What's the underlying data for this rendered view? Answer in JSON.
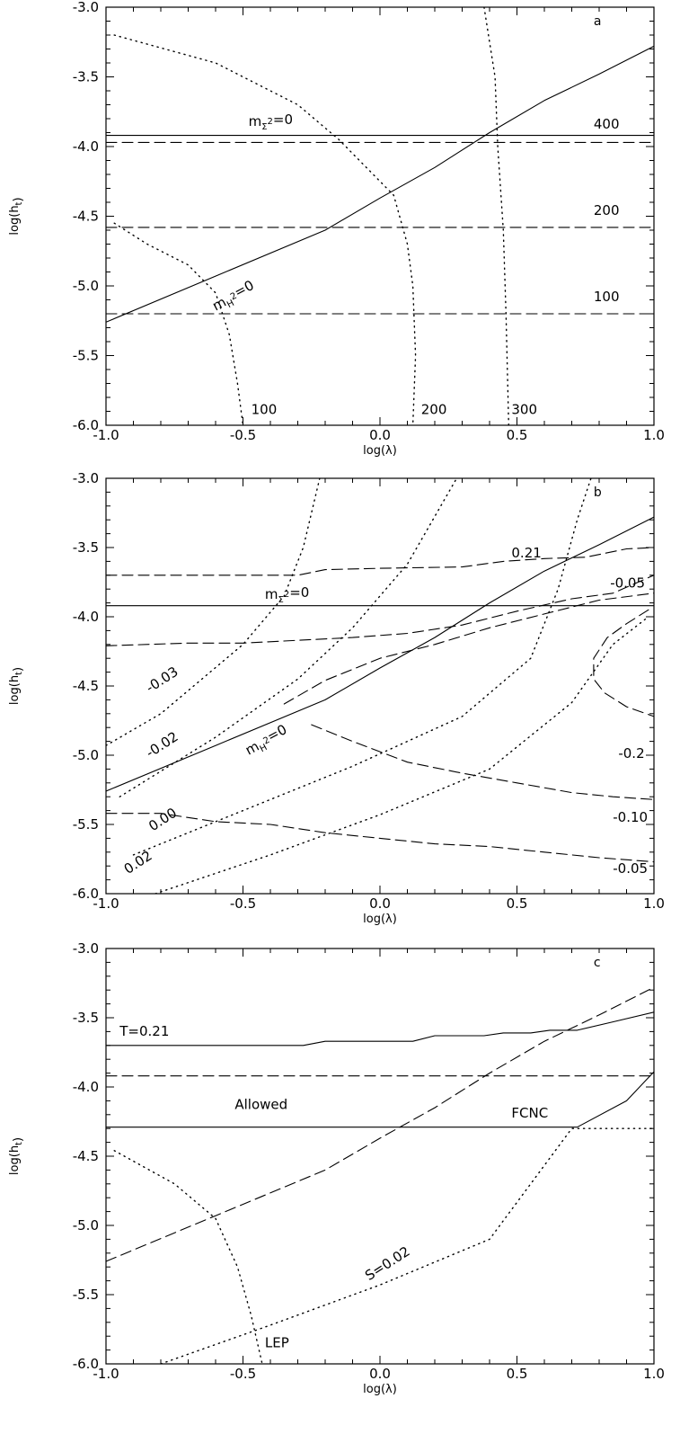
{
  "chart_data": [
    {
      "type": "line",
      "panel_label": "a",
      "xlabel": "log(λ)",
      "ylabel": "log(h_t)",
      "xlim": [
        -1.0,
        1.0
      ],
      "ylim": [
        -6.0,
        -3.0
      ],
      "x_ticks": [
        "-1.0",
        "-0.5",
        "0.0",
        "0.5",
        "1.0"
      ],
      "y_ticks": [
        "-3.0",
        "-3.5",
        "-4.0",
        "-4.5",
        "-5.0",
        "-5.5",
        "-6.0"
      ],
      "grid": false,
      "series": [
        {
          "style": "solid",
          "points": [
            [
              -1.0,
              -5.26
            ],
            [
              -0.6,
              -4.93
            ],
            [
              -0.2,
              -4.6
            ],
            [
              0.0,
              -4.37
            ],
            [
              0.2,
              -4.15
            ],
            [
              0.4,
              -3.9
            ],
            [
              0.6,
              -3.67
            ],
            [
              0.8,
              -3.48
            ],
            [
              1.0,
              -3.28
            ]
          ]
        },
        {
          "style": "solid",
          "points": [
            [
              -1.0,
              -3.92
            ],
            [
              1.0,
              -3.92
            ]
          ]
        },
        {
          "style": "dashed",
          "points": [
            [
              -1.0,
              -3.97
            ],
            [
              1.0,
              -3.97
            ]
          ]
        },
        {
          "style": "dashed",
          "points": [
            [
              -1.0,
              -4.58
            ],
            [
              1.0,
              -4.58
            ]
          ]
        },
        {
          "style": "dashed",
          "points": [
            [
              -1.0,
              -5.2
            ],
            [
              1.0,
              -5.2
            ]
          ]
        },
        {
          "style": "dotted",
          "points": [
            [
              -0.97,
              -3.2
            ],
            [
              -0.6,
              -3.4
            ],
            [
              -0.3,
              -3.7
            ],
            [
              -0.15,
              -3.95
            ],
            [
              0.05,
              -4.35
            ],
            [
              0.1,
              -4.7
            ],
            [
              0.12,
              -5.0
            ],
            [
              0.13,
              -5.5
            ],
            [
              0.12,
              -6.0
            ]
          ]
        },
        {
          "style": "dotted",
          "points": [
            [
              0.38,
              -3.0
            ],
            [
              0.42,
              -3.5
            ],
            [
              0.43,
              -4.0
            ],
            [
              0.45,
              -4.6
            ],
            [
              0.46,
              -5.2
            ],
            [
              0.47,
              -6.0
            ]
          ]
        },
        {
          "style": "dotted",
          "points": [
            [
              -0.97,
              -4.55
            ],
            [
              -0.85,
              -4.7
            ],
            [
              -0.7,
              -4.85
            ],
            [
              -0.6,
              -5.05
            ],
            [
              -0.55,
              -5.35
            ],
            [
              -0.52,
              -5.7
            ],
            [
              -0.5,
              -6.0
            ]
          ]
        }
      ],
      "annotations": [
        {
          "text": "a",
          "x": 0.78,
          "y": -3.13,
          "kind": "panel"
        },
        {
          "text": "m_Σ²=0",
          "x": -0.48,
          "y": -3.85
        },
        {
          "text": "m_H²=0",
          "x": -0.6,
          "y": -5.18,
          "rotate": -28
        },
        {
          "text": "400",
          "x": 0.78,
          "y": -3.87
        },
        {
          "text": "200",
          "x": 0.78,
          "y": -4.49
        },
        {
          "text": "100",
          "x": 0.78,
          "y": -5.11
        },
        {
          "text": "100",
          "x": -0.47,
          "y": -5.92
        },
        {
          "text": "200",
          "x": 0.15,
          "y": -5.92
        },
        {
          "text": "300",
          "x": 0.48,
          "y": -5.92
        }
      ]
    },
    {
      "type": "line",
      "panel_label": "b",
      "xlabel": "log(λ)",
      "ylabel": "log(h_t)",
      "xlim": [
        -1.0,
        1.0
      ],
      "ylim": [
        -6.0,
        -3.0
      ],
      "x_ticks": [
        "-1.0",
        "-0.5",
        "0.0",
        "0.5",
        "1.0"
      ],
      "y_ticks": [
        "-3.0",
        "-3.5",
        "-4.0",
        "-4.5",
        "-5.0",
        "-5.5",
        "-6.0"
      ],
      "grid": false,
      "series": [
        {
          "style": "solid",
          "points": [
            [
              -1.0,
              -5.26
            ],
            [
              -0.6,
              -4.93
            ],
            [
              -0.2,
              -4.6
            ],
            [
              0.0,
              -4.37
            ],
            [
              0.2,
              -4.15
            ],
            [
              0.4,
              -3.9
            ],
            [
              0.6,
              -3.67
            ],
            [
              0.8,
              -3.48
            ],
            [
              1.0,
              -3.28
            ]
          ]
        },
        {
          "style": "solid",
          "points": [
            [
              -1.0,
              -3.92
            ],
            [
              1.0,
              -3.92
            ]
          ]
        },
        {
          "style": "dashed",
          "points": [
            [
              -1.0,
              -3.7
            ],
            [
              -0.3,
              -3.7
            ],
            [
              -0.2,
              -3.66
            ],
            [
              0.0,
              -3.65
            ],
            [
              0.3,
              -3.64
            ],
            [
              0.45,
              -3.6
            ],
            [
              0.6,
              -3.58
            ],
            [
              0.75,
              -3.57
            ],
            [
              0.9,
              -3.51
            ],
            [
              1.0,
              -3.5
            ]
          ]
        },
        {
          "style": "dashed",
          "points": [
            [
              -1.0,
              -4.21
            ],
            [
              -0.7,
              -4.19
            ],
            [
              -0.5,
              -4.19
            ],
            [
              -0.3,
              -4.17
            ],
            [
              -0.1,
              -4.15
            ],
            [
              0.1,
              -4.12
            ],
            [
              0.3,
              -4.06
            ],
            [
              0.5,
              -3.96
            ],
            [
              0.7,
              -3.87
            ],
            [
              0.85,
              -3.83
            ],
            [
              1.0,
              -3.7
            ]
          ]
        },
        {
          "style": "dashed",
          "points": [
            [
              -0.35,
              -4.63
            ],
            [
              -0.2,
              -4.46
            ],
            [
              0.0,
              -4.3
            ],
            [
              0.2,
              -4.2
            ],
            [
              0.4,
              -4.08
            ],
            [
              0.6,
              -3.98
            ],
            [
              0.8,
              -3.88
            ],
            [
              1.0,
              -3.83
            ]
          ]
        },
        {
          "style": "dashed",
          "points": [
            [
              -0.25,
              -4.78
            ],
            [
              -0.1,
              -4.9
            ],
            [
              0.1,
              -5.05
            ],
            [
              0.3,
              -5.13
            ],
            [
              0.5,
              -5.2
            ],
            [
              0.7,
              -5.27
            ],
            [
              0.85,
              -5.3
            ],
            [
              1.0,
              -5.32
            ]
          ]
        },
        {
          "style": "dashed",
          "points": [
            [
              -1.0,
              -5.42
            ],
            [
              -0.8,
              -5.42
            ],
            [
              -0.6,
              -5.48
            ],
            [
              -0.4,
              -5.5
            ],
            [
              -0.2,
              -5.56
            ],
            [
              0.0,
              -5.6
            ],
            [
              0.2,
              -5.64
            ],
            [
              0.4,
              -5.66
            ],
            [
              0.6,
              -5.7
            ],
            [
              0.8,
              -5.74
            ],
            [
              1.0,
              -5.77
            ]
          ]
        },
        {
          "style": "dashed",
          "points": [
            [
              0.98,
              -3.95
            ],
            [
              0.9,
              -4.05
            ],
            [
              0.83,
              -4.15
            ],
            [
              0.78,
              -4.3
            ],
            [
              0.78,
              -4.45
            ],
            [
              0.82,
              -4.55
            ],
            [
              0.9,
              -4.65
            ],
            [
              1.0,
              -4.72
            ]
          ]
        },
        {
          "style": "dotted",
          "points": [
            [
              -1.0,
              -4.93
            ],
            [
              -0.8,
              -4.7
            ],
            [
              -0.5,
              -4.2
            ],
            [
              -0.35,
              -3.85
            ],
            [
              -0.28,
              -3.5
            ],
            [
              -0.22,
              -3.0
            ]
          ]
        },
        {
          "style": "dotted",
          "points": [
            [
              -0.95,
              -5.3
            ],
            [
              -0.6,
              -4.87
            ],
            [
              -0.3,
              -4.45
            ],
            [
              -0.1,
              -4.08
            ],
            [
              0.1,
              -3.62
            ],
            [
              0.28,
              -3.0
            ]
          ]
        },
        {
          "style": "dotted",
          "points": [
            [
              -0.9,
              -5.72
            ],
            [
              -0.5,
              -5.4
            ],
            [
              -0.1,
              -5.08
            ],
            [
              0.3,
              -4.72
            ],
            [
              0.55,
              -4.3
            ],
            [
              0.65,
              -3.8
            ],
            [
              0.72,
              -3.3
            ],
            [
              0.77,
              -3.0
            ]
          ]
        },
        {
          "style": "dotted",
          "points": [
            [
              -0.82,
              -6.0
            ],
            [
              -0.4,
              -5.72
            ],
            [
              0.0,
              -5.43
            ],
            [
              0.4,
              -5.1
            ],
            [
              0.7,
              -4.62
            ],
            [
              0.85,
              -4.2
            ],
            [
              0.98,
              -4.0
            ]
          ]
        }
      ],
      "annotations": [
        {
          "text": "b",
          "x": 0.78,
          "y": -3.13,
          "kind": "panel"
        },
        {
          "text": "0.21",
          "x": 0.48,
          "y": -3.57
        },
        {
          "text": "-0.05",
          "x": 0.84,
          "y": -3.79
        },
        {
          "text": "m_Σ²=0",
          "x": -0.42,
          "y": -3.87
        },
        {
          "text": "-0.03",
          "x": -0.84,
          "y": -4.55,
          "rotate": -33
        },
        {
          "text": "-0.02",
          "x": -0.84,
          "y": -5.02,
          "rotate": -33
        },
        {
          "text": "m_H²=0",
          "x": -0.48,
          "y": -5.0,
          "rotate": -28
        },
        {
          "text": "-0.2",
          "x": 0.87,
          "y": -5.02
        },
        {
          "text": "0.00",
          "x": -0.83,
          "y": -5.55,
          "rotate": -33
        },
        {
          "text": "0.02",
          "x": -0.92,
          "y": -5.86,
          "rotate": -33
        },
        {
          "text": "-0.10",
          "x": 0.85,
          "y": -5.48
        },
        {
          "text": "-0.05",
          "x": 0.85,
          "y": -5.85
        }
      ]
    },
    {
      "type": "line",
      "panel_label": "c",
      "xlabel": "log(λ)",
      "ylabel": "log(h_t)",
      "xlim": [
        -1.0,
        1.0
      ],
      "ylim": [
        -6.0,
        -3.0
      ],
      "x_ticks": [
        "-1.0",
        "-0.5",
        "0.0",
        "0.5",
        "1.0"
      ],
      "y_ticks": [
        "-3.0",
        "-3.5",
        "-4.0",
        "-4.5",
        "-5.0",
        "-5.5",
        "-6.0"
      ],
      "grid": false,
      "series": [
        {
          "style": "solid",
          "points": [
            [
              -1.0,
              -3.7
            ],
            [
              -0.28,
              -3.7
            ],
            [
              -0.2,
              -3.67
            ],
            [
              0.12,
              -3.67
            ],
            [
              0.2,
              -3.63
            ],
            [
              0.38,
              -3.63
            ],
            [
              0.45,
              -3.61
            ],
            [
              0.55,
              -3.61
            ],
            [
              0.62,
              -3.59
            ],
            [
              0.72,
              -3.59
            ],
            [
              0.85,
              -3.53
            ],
            [
              1.0,
              -3.46
            ]
          ]
        },
        {
          "style": "solid",
          "points": [
            [
              -1.0,
              -4.29
            ],
            [
              0.72,
              -4.29
            ],
            [
              0.9,
              -4.1
            ],
            [
              1.0,
              -3.89
            ]
          ]
        },
        {
          "style": "dashed",
          "points": [
            [
              -1.0,
              -5.26
            ],
            [
              -0.6,
              -4.93
            ],
            [
              -0.2,
              -4.6
            ],
            [
              0.0,
              -4.37
            ],
            [
              0.2,
              -4.15
            ],
            [
              0.4,
              -3.9
            ],
            [
              0.6,
              -3.67
            ],
            [
              0.8,
              -3.48
            ],
            [
              1.0,
              -3.28
            ]
          ]
        },
        {
          "style": "dashed",
          "points": [
            [
              -1.0,
              -3.92
            ],
            [
              1.0,
              -3.92
            ]
          ]
        },
        {
          "style": "dotted",
          "points": [
            [
              -0.8,
              -6.0
            ],
            [
              -0.4,
              -5.72
            ],
            [
              0.0,
              -5.43
            ],
            [
              0.4,
              -5.1
            ],
            [
              0.7,
              -4.3
            ],
            [
              1.0,
              -4.3
            ]
          ]
        },
        {
          "style": "dotted",
          "points": [
            [
              -0.97,
              -4.46
            ],
            [
              -0.75,
              -4.7
            ],
            [
              -0.6,
              -4.95
            ],
            [
              -0.52,
              -5.3
            ],
            [
              -0.47,
              -5.65
            ],
            [
              -0.43,
              -6.0
            ]
          ]
        }
      ],
      "annotations": [
        {
          "text": "c",
          "x": 0.78,
          "y": -3.13,
          "kind": "panel"
        },
        {
          "text": "T=0.21",
          "x": -0.95,
          "y": -3.63
        },
        {
          "text": "Allowed",
          "x": -0.53,
          "y": -4.16
        },
        {
          "text": "FCNC",
          "x": 0.48,
          "y": -4.22
        },
        {
          "text": "S=0.02",
          "x": -0.04,
          "y": -5.4,
          "rotate": -33
        },
        {
          "text": "LEP",
          "x": -0.42,
          "y": -5.88
        }
      ]
    }
  ]
}
